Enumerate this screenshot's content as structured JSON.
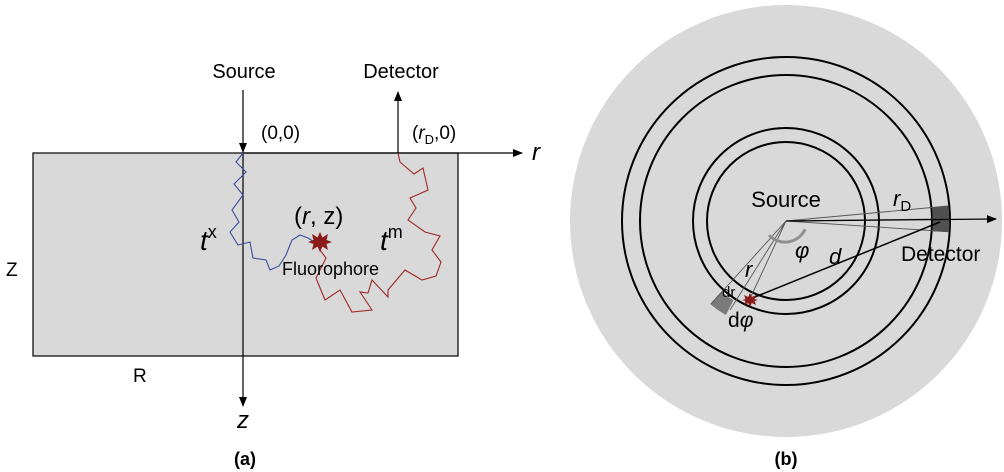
{
  "panel_a": {
    "source_label": "Source",
    "detector_label": "Detector",
    "origin_label": "(0,0)",
    "detector_pos_open": "(",
    "detector_pos_r": "r",
    "detector_pos_sub": "D",
    "detector_pos_close": ",0)",
    "r_axis_label": "r",
    "z_axis_label": "z",
    "Z_label": "Z",
    "R_label": "R",
    "point_open": "(",
    "point_r": "r",
    "point_rest": ", z)",
    "tx_base": "t",
    "tx_sup": "x",
    "tm_base": "t",
    "tm_sup": "m",
    "fluorophore_label": "Fluorophore",
    "caption": "(a)",
    "colors": {
      "slab": "#d9d9d9",
      "excitation_path": "#3a4fa0",
      "emission_path": "#a02828",
      "fluorophore": "#8b1a1a"
    }
  },
  "panel_b": {
    "source_label": "Source",
    "detector_label": "Detector",
    "rD_base": "r",
    "rD_sub": "D",
    "r_label": "r",
    "d_label": "d",
    "phi_label": "φ",
    "dr_label": "dr",
    "dphi_d": "d",
    "dphi_phi": "φ",
    "caption": "(b)",
    "colors": {
      "disk": "#d9d9d9",
      "detector_patch": "#505050",
      "element_patch": "#7a7a7a",
      "angle_arc": "#909090"
    }
  }
}
